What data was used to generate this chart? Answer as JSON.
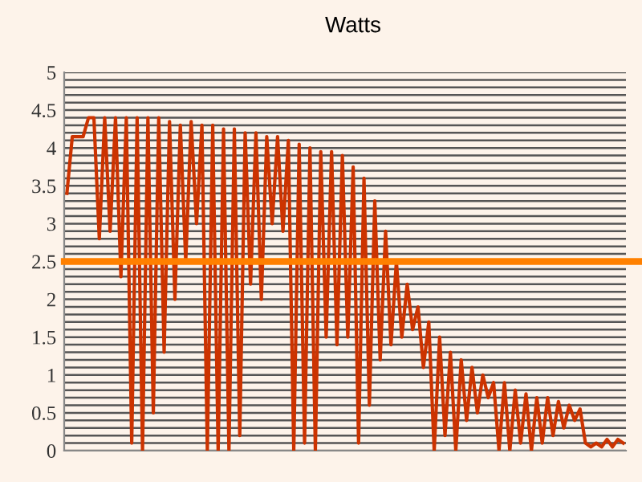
{
  "chart_data": {
    "type": "line",
    "title": "Watts",
    "categories": [
      null,
      null,
      null,
      null,
      null,
      null,
      null,
      null,
      null,
      null,
      null,
      null,
      null,
      null,
      null,
      null,
      null,
      null,
      null,
      null,
      null,
      null,
      null,
      null,
      null,
      null,
      null,
      null,
      null,
      null,
      null,
      null,
      null,
      null,
      null,
      null,
      null,
      null,
      null,
      null,
      null,
      null,
      null,
      null,
      null,
      null,
      null,
      null,
      null,
      null,
      null,
      null,
      null,
      null,
      null,
      null,
      null,
      null,
      null,
      null,
      null,
      null,
      null,
      null,
      null,
      null,
      null,
      null,
      null,
      null,
      null,
      null,
      null,
      null,
      null,
      null,
      null,
      null,
      null,
      null,
      null,
      null,
      null,
      null,
      null,
      null,
      null,
      null,
      null,
      null,
      null,
      null,
      null,
      null,
      null,
      null,
      null,
      null,
      null,
      null,
      null,
      null,
      null,
      null
    ],
    "series": [
      {
        "color": "#cc3300",
        "values": [
          3.4,
          4.15,
          4.15,
          4.15,
          4.4,
          4.4,
          2.8,
          4.4,
          2.9,
          4.4,
          2.3,
          4.4,
          0.1,
          4.4,
          0,
          4.4,
          0.5,
          4.4,
          1.3,
          4.35,
          2.0,
          4.3,
          2.5,
          4.35,
          3.0,
          4.3,
          0,
          4.3,
          0,
          4.25,
          0,
          4.25,
          0.2,
          4.2,
          2.2,
          4.2,
          2.0,
          4.15,
          3.0,
          4.15,
          2.9,
          4.1,
          0,
          4.05,
          0.1,
          4.0,
          0,
          3.95,
          1.5,
          3.95,
          1.4,
          3.9,
          1.5,
          3.75,
          0.1,
          3.6,
          0.6,
          3.3,
          1.2,
          2.9,
          1.4,
          2.5,
          1.5,
          2.2,
          1.6,
          1.9,
          1.1,
          1.7,
          0,
          1.5,
          0.2,
          1.3,
          0,
          1.2,
          0.4,
          1.1,
          0.5,
          1.0,
          0.7,
          0.9,
          0,
          0.9,
          0,
          0.8,
          0.1,
          0.75,
          0,
          0.7,
          0.1,
          0.7,
          0.2,
          0.65,
          0.3,
          0.6,
          0.4,
          0.55,
          0.1,
          0.05,
          0.1,
          0.05,
          0.15,
          0.05,
          0.15,
          0.1
        ]
      }
    ],
    "ylim": [
      0,
      5
    ],
    "yticks": [
      0,
      {
        "value": 0.1,
        "label": null
      },
      {
        "value": 0.2,
        "label": null
      },
      {
        "value": 0.3,
        "label": null
      },
      {
        "value": 0.4,
        "label": null
      },
      0.5,
      {
        "value": 0.6,
        "label": null
      },
      {
        "value": 0.7,
        "label": null
      },
      {
        "value": 0.8,
        "label": null
      },
      {
        "value": 0.9,
        "label": null
      },
      1,
      {
        "value": 1.1,
        "label": null
      },
      {
        "value": 1.2,
        "label": null
      },
      {
        "value": 1.3,
        "label": null
      },
      {
        "value": 1.4,
        "label": null
      },
      1.5,
      {
        "value": 1.6,
        "label": null
      },
      {
        "value": 1.7,
        "label": null
      },
      {
        "value": 1.8,
        "label": null
      },
      {
        "value": 1.9,
        "label": null
      },
      2,
      {
        "value": 2.1,
        "label": null
      },
      {
        "value": 2.2,
        "label": null
      },
      {
        "value": 2.3,
        "label": null
      },
      {
        "value": 2.4,
        "label": null
      },
      2.5,
      {
        "value": 2.6,
        "label": null
      },
      {
        "value": 2.7,
        "label": null
      },
      {
        "value": 2.8,
        "label": null
      },
      {
        "value": 2.9,
        "label": null
      },
      3,
      {
        "value": 3.1,
        "label": null
      },
      {
        "value": 3.2,
        "label": null
      },
      {
        "value": 3.3,
        "label": null
      },
      {
        "value": 3.4,
        "label": null
      },
      3.5,
      {
        "value": 3.6,
        "label": null
      },
      {
        "value": 3.7,
        "label": null
      },
      {
        "value": 3.8,
        "label": null
      },
      {
        "value": 3.9,
        "label": null
      },
      4,
      {
        "value": 4.1,
        "label": null
      },
      {
        "value": 4.2,
        "label": null
      },
      {
        "value": 4.3,
        "label": null
      },
      {
        "value": 4.4,
        "label": null
      },
      4.5,
      {
        "value": 4.6,
        "label": null
      },
      {
        "value": 4.7,
        "label": null
      },
      {
        "value": 4.8,
        "label": null
      },
      {
        "value": 4.9,
        "label": null
      },
      5
    ],
    "ref_lines": [
      {
        "axis": "y",
        "value": 2.5,
        "color": "#ff8000"
      }
    ],
    "grid": "y",
    "legend": false,
    "marker": "none",
    "line_style": "solid"
  }
}
